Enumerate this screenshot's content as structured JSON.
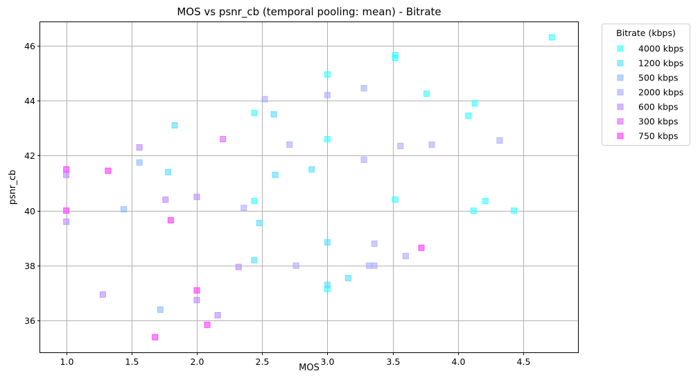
{
  "chart_data": {
    "type": "scatter",
    "title": "MOS vs psnr_cb (temporal pooling: mean) - Bitrate",
    "xlabel": "MOS",
    "ylabel": "psnr_cb",
    "xlim": [
      0.8,
      4.92
    ],
    "ylim": [
      34.85,
      46.85
    ],
    "xticks": [
      "1.0",
      "1.5",
      "2.0",
      "2.5",
      "3.0",
      "3.5",
      "4.0",
      "4.5"
    ],
    "yticks": [
      "36",
      "38",
      "40",
      "42",
      "44",
      "46"
    ],
    "grid": true,
    "marker": "square",
    "legend": {
      "title": "Bitrate (kbps)",
      "placement": "outside-right-top"
    },
    "series": [
      {
        "name": "4000 kbps",
        "color": "#33ffff",
        "points": [
          [
            4.72,
            46.3
          ],
          [
            3.52,
            45.65
          ],
          [
            3.52,
            45.55
          ],
          [
            3.0,
            44.95
          ],
          [
            3.76,
            44.25
          ],
          [
            4.13,
            43.9
          ],
          [
            4.08,
            43.45
          ],
          [
            2.44,
            43.55
          ],
          [
            3.0,
            42.6
          ],
          [
            2.44,
            40.35
          ],
          [
            3.52,
            40.4
          ],
          [
            4.21,
            40.35
          ],
          [
            4.12,
            40.0
          ],
          [
            4.43,
            40.0
          ],
          [
            3.0,
            37.15
          ]
        ]
      },
      {
        "name": "1200 kbps",
        "color": "#55ddff",
        "points": [
          [
            1.83,
            43.1
          ],
          [
            2.59,
            43.5
          ],
          [
            2.88,
            41.5
          ],
          [
            2.6,
            41.3
          ],
          [
            1.78,
            41.4
          ],
          [
            2.48,
            39.55
          ],
          [
            3.0,
            38.85
          ],
          [
            2.44,
            38.2
          ],
          [
            3.16,
            37.55
          ],
          [
            3.0,
            37.3
          ]
        ]
      },
      {
        "name": "500 kbps",
        "color": "#88bbff",
        "points": [
          [
            1.56,
            41.75
          ],
          [
            1.44,
            40.05
          ],
          [
            1.72,
            36.4
          ]
        ]
      },
      {
        "name": "2000 kbps",
        "color": "#aaaaff",
        "points": [
          [
            2.52,
            44.05
          ],
          [
            3.0,
            44.2
          ],
          [
            3.28,
            44.45
          ],
          [
            2.71,
            42.4
          ],
          [
            3.28,
            41.85
          ],
          [
            3.56,
            42.35
          ],
          [
            3.8,
            42.4
          ],
          [
            4.32,
            42.55
          ],
          [
            2.36,
            40.1
          ],
          [
            3.36,
            38.8
          ],
          [
            3.6,
            38.35
          ],
          [
            2.76,
            38.0
          ],
          [
            3.32,
            38.0
          ],
          [
            3.36,
            38.0
          ]
        ]
      },
      {
        "name": "600 kbps",
        "color": "#bb88ff",
        "points": [
          [
            1.56,
            42.3
          ],
          [
            1.0,
            41.3
          ],
          [
            1.76,
            40.4
          ],
          [
            2.0,
            40.5
          ],
          [
            1.0,
            39.6
          ],
          [
            2.32,
            37.95
          ],
          [
            1.28,
            36.95
          ],
          [
            2.0,
            36.75
          ],
          [
            2.16,
            36.2
          ]
        ]
      },
      {
        "name": "300 kbps",
        "color": "#dd66ff",
        "points": [
          [
            2.2,
            42.6
          ]
        ]
      },
      {
        "name": "750 kbps",
        "color": "#ff33ff",
        "points": [
          [
            1.0,
            41.5
          ],
          [
            1.32,
            41.45
          ],
          [
            1.0,
            40.0
          ],
          [
            1.8,
            39.65
          ],
          [
            3.72,
            38.65
          ],
          [
            2.0,
            37.1
          ],
          [
            2.08,
            35.85
          ],
          [
            1.68,
            35.4
          ]
        ]
      }
    ]
  }
}
